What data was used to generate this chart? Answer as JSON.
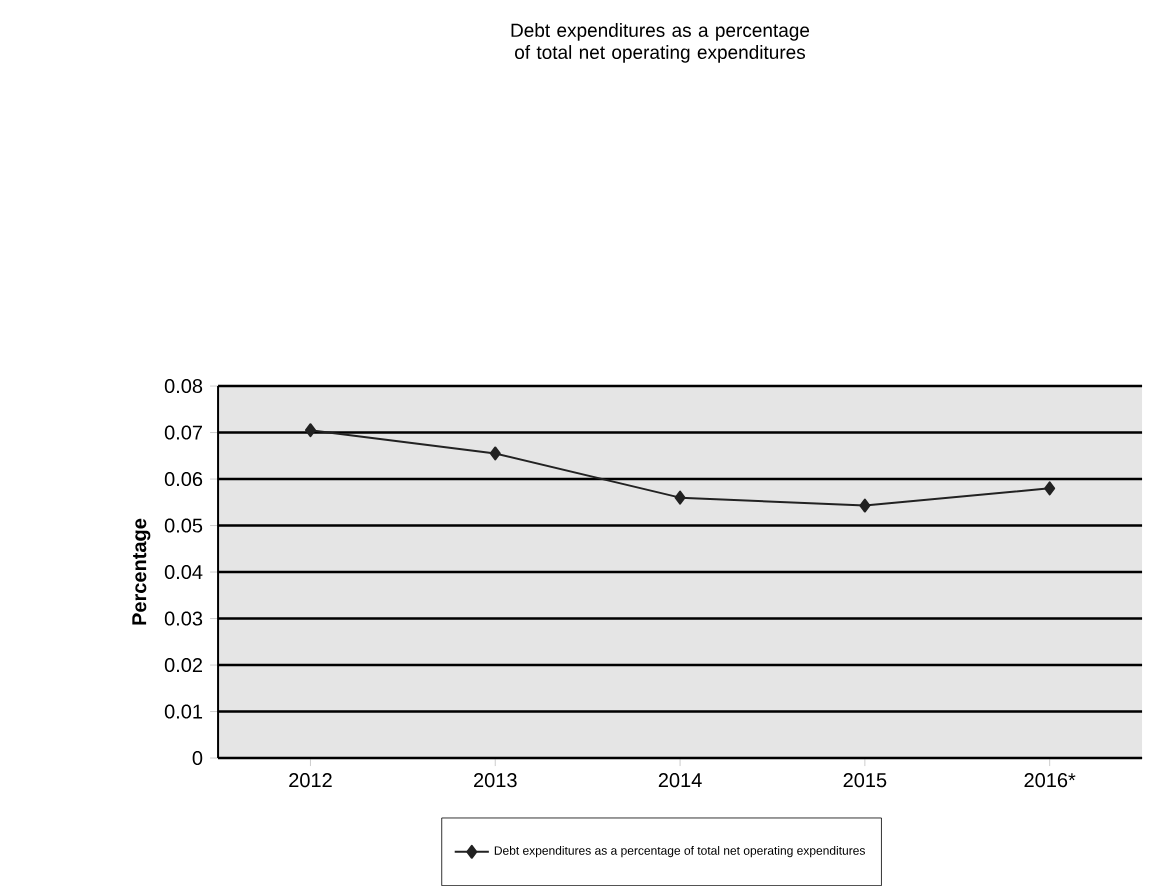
{
  "chart_data": {
    "type": "line",
    "title": "Debt expenditures as a percentage of total net operating expenditures",
    "ylabel": "Percentage",
    "categories": [
      "2012",
      "2013",
      "2014",
      "2015",
      "2016*"
    ],
    "series": [
      {
        "name": "Debt expenditures as a percentage of total net operating expenditures",
        "color": "#222222",
        "values": [
          0.0705,
          0.0655,
          0.056,
          0.0543,
          0.058
        ]
      }
    ],
    "ylim": [
      0,
      0.08
    ],
    "yticks": [
      0,
      0.01,
      0.02,
      0.03,
      0.04,
      0.05,
      0.06,
      0.07,
      0.08
    ],
    "grid": "y",
    "legend": "bottom",
    "marker": "diamond",
    "line_style": "solid"
  }
}
